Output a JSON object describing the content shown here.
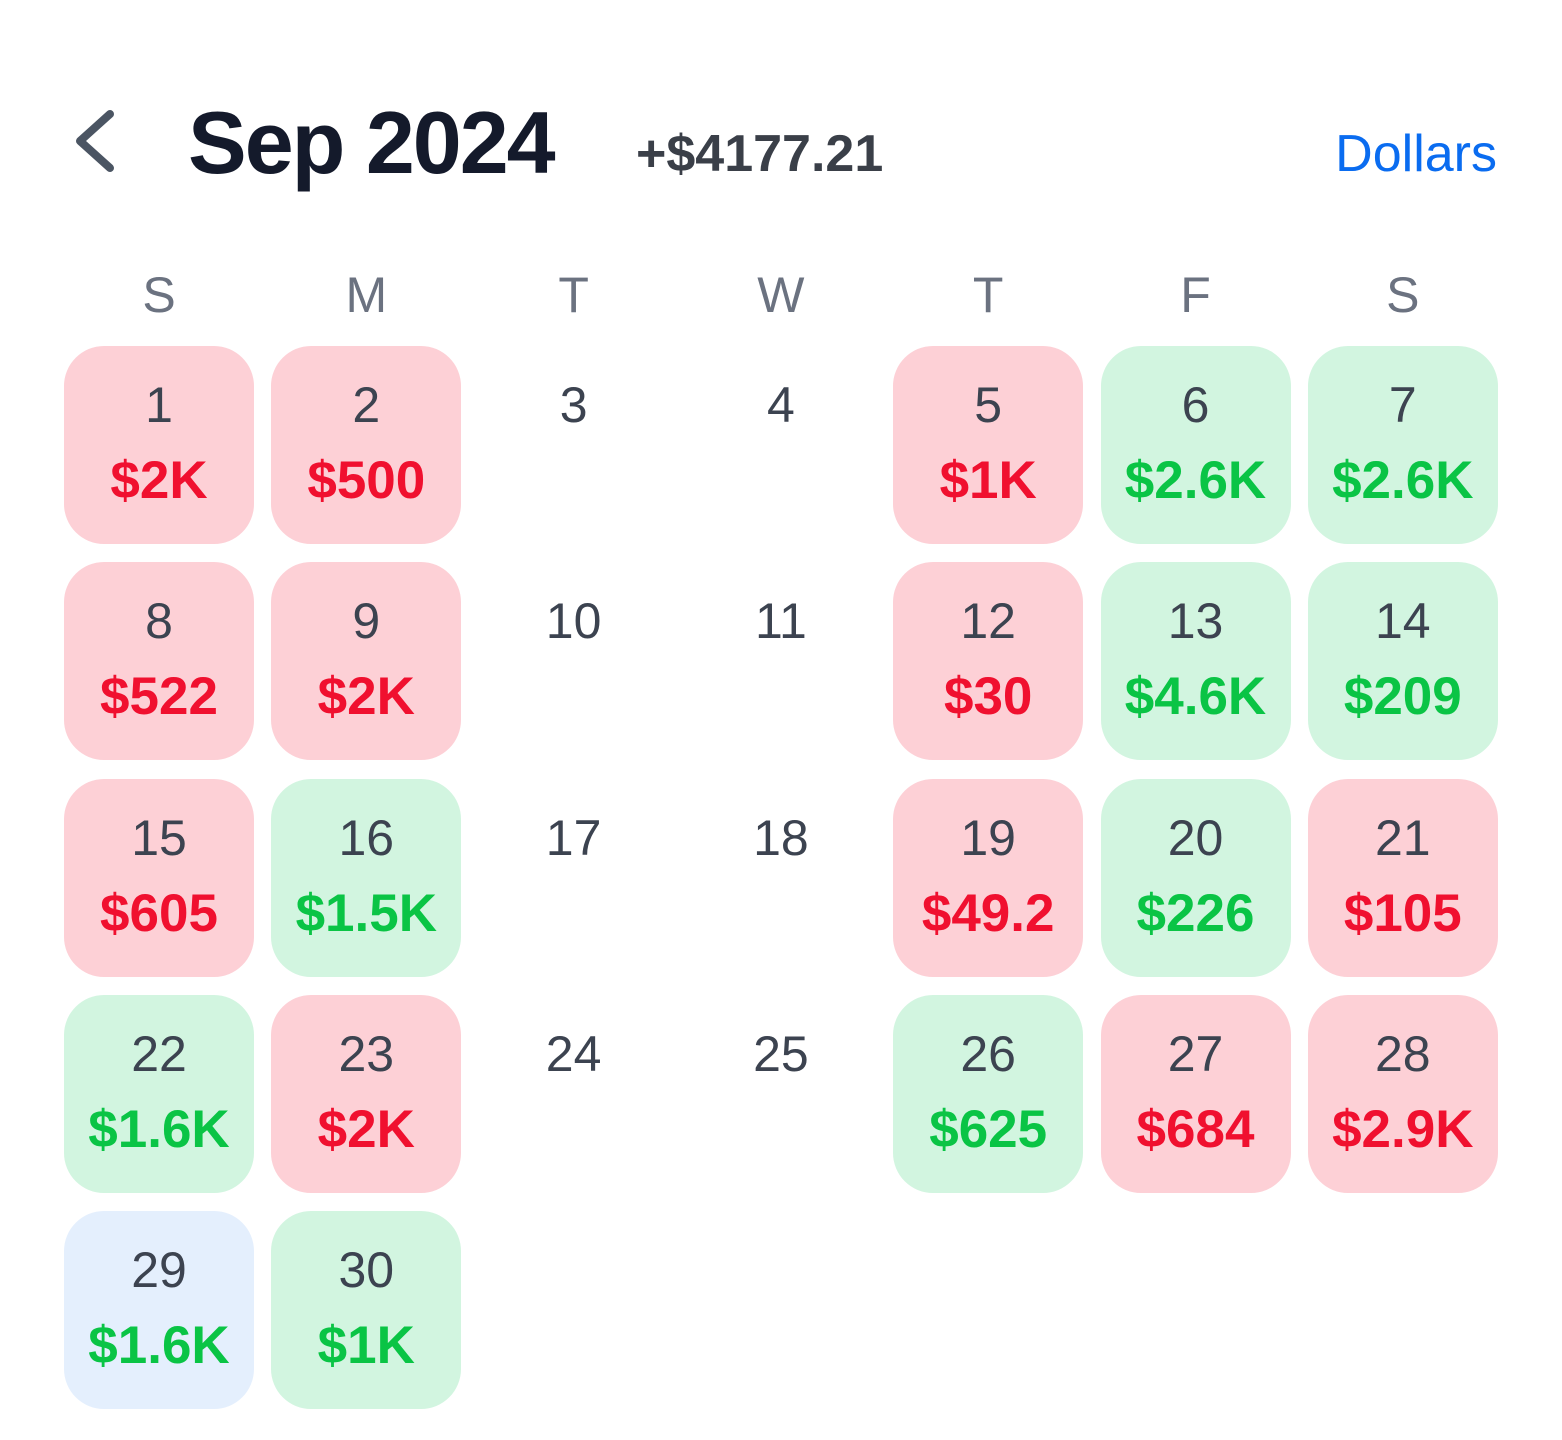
{
  "header": {
    "title": "Sep 2024",
    "total": "+$4177.21",
    "unit_toggle": "Dollars"
  },
  "weekdays": [
    "S",
    "M",
    "T",
    "W",
    "T",
    "F",
    "S"
  ],
  "tones": {
    "loss": {
      "background": "#fdd0d6",
      "text": "#f0102f"
    },
    "gain": {
      "background": "#d2f5e0",
      "text": "#0ac445"
    }
  },
  "today_background": "#e4effd",
  "days": [
    {
      "day": "1",
      "amount": "$2K",
      "tone": "loss"
    },
    {
      "day": "2",
      "amount": "$500",
      "tone": "loss"
    },
    {
      "day": "3"
    },
    {
      "day": "4"
    },
    {
      "day": "5",
      "amount": "$1K",
      "tone": "loss"
    },
    {
      "day": "6",
      "amount": "$2.6K",
      "tone": "gain"
    },
    {
      "day": "7",
      "amount": "$2.6K",
      "tone": "gain"
    },
    {
      "day": "8",
      "amount": "$522",
      "tone": "loss"
    },
    {
      "day": "9",
      "amount": "$2K",
      "tone": "loss"
    },
    {
      "day": "10"
    },
    {
      "day": "11"
    },
    {
      "day": "12",
      "amount": "$30",
      "tone": "loss"
    },
    {
      "day": "13",
      "amount": "$4.6K",
      "tone": "gain"
    },
    {
      "day": "14",
      "amount": "$209",
      "tone": "gain"
    },
    {
      "day": "15",
      "amount": "$605",
      "tone": "loss"
    },
    {
      "day": "16",
      "amount": "$1.5K",
      "tone": "gain"
    },
    {
      "day": "17"
    },
    {
      "day": "18"
    },
    {
      "day": "19",
      "amount": "$49.2",
      "tone": "loss"
    },
    {
      "day": "20",
      "amount": "$226",
      "tone": "gain"
    },
    {
      "day": "21",
      "amount": "$105",
      "tone": "loss"
    },
    {
      "day": "22",
      "amount": "$1.6K",
      "tone": "gain"
    },
    {
      "day": "23",
      "amount": "$2K",
      "tone": "loss"
    },
    {
      "day": "24"
    },
    {
      "day": "25"
    },
    {
      "day": "26",
      "amount": "$625",
      "tone": "gain"
    },
    {
      "day": "27",
      "amount": "$684",
      "tone": "loss"
    },
    {
      "day": "28",
      "amount": "$2.9K",
      "tone": "loss"
    },
    {
      "day": "29",
      "amount": "$1.6K",
      "tone": "gain",
      "today": true
    },
    {
      "day": "30",
      "amount": "$1K",
      "tone": "gain"
    }
  ]
}
